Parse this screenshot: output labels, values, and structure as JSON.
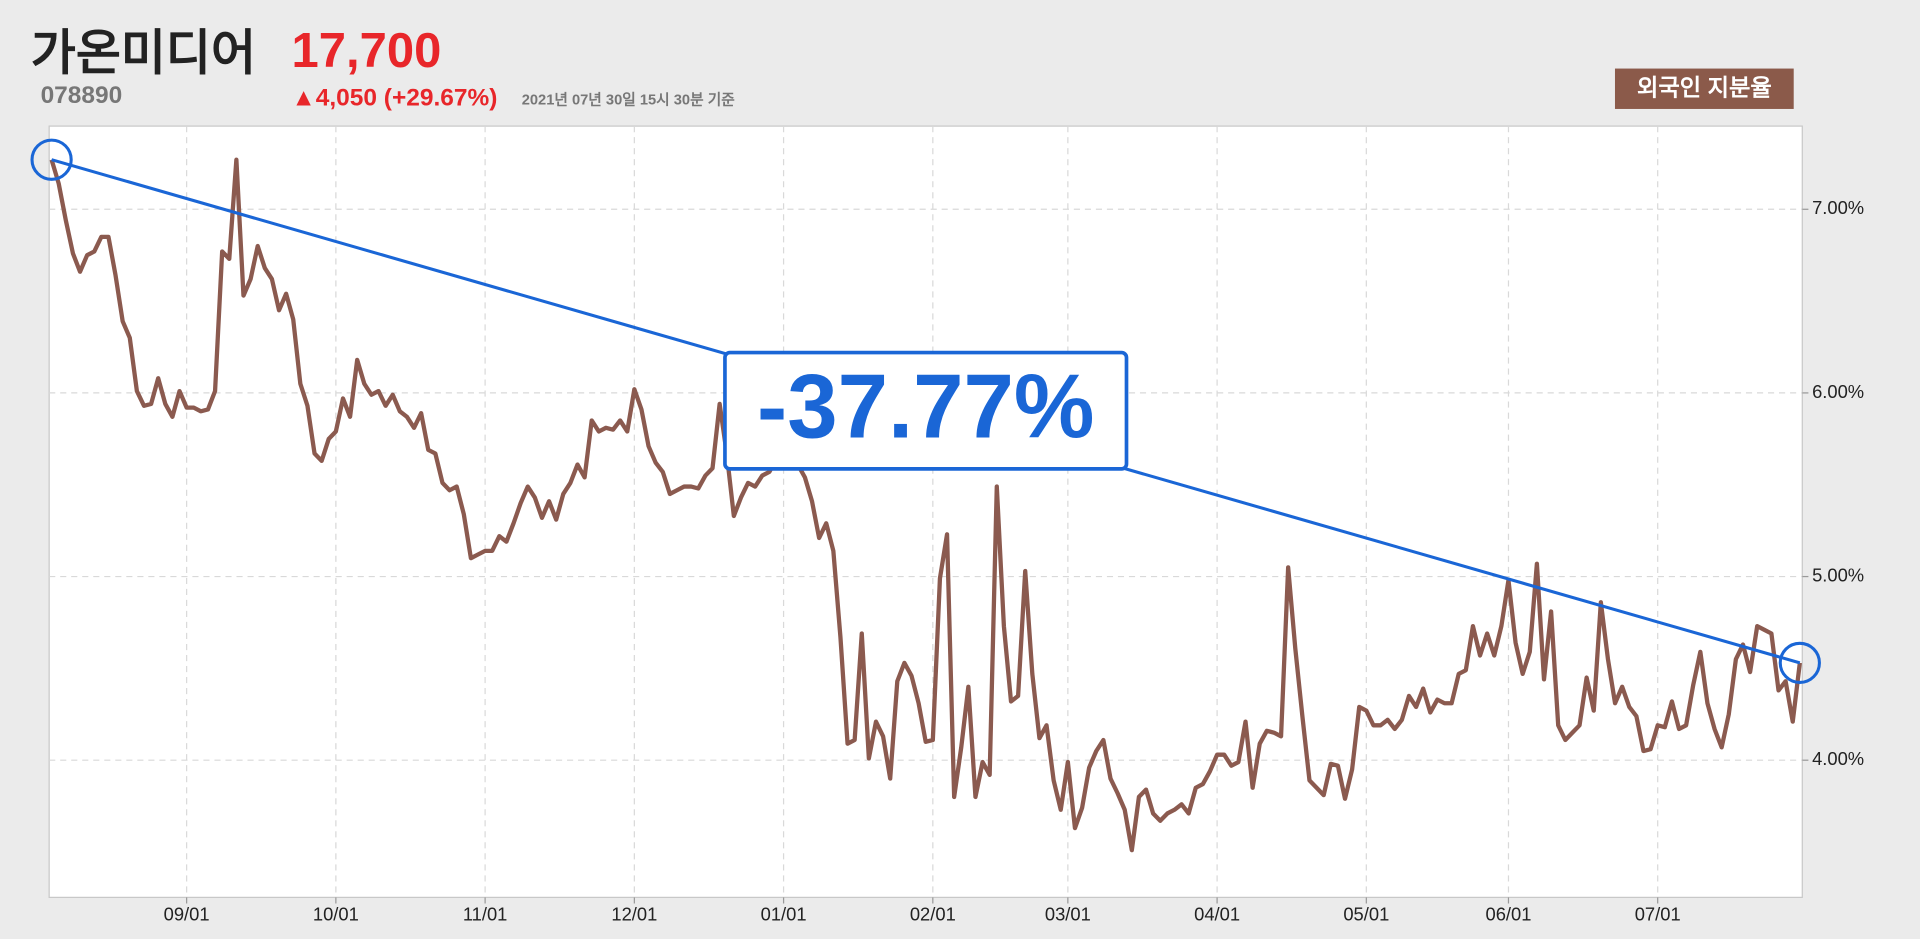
{
  "header": {
    "title": "가온미디어",
    "code": "078890",
    "price": "17,700",
    "change": "▲4,050 (+29.67%)",
    "timestamp": "2021년 07년 30일 15시 30분 기준"
  },
  "chart_data": {
    "type": "line",
    "annotation": "-37.77%",
    "categories": [
      null,
      null,
      null,
      null,
      null,
      null,
      null,
      null,
      null,
      null,
      null,
      null,
      null,
      null,
      null,
      null,
      null,
      null,
      null,
      "09/01",
      null,
      null,
      null,
      null,
      null,
      null,
      null,
      null,
      null,
      null,
      null,
      null,
      null,
      null,
      null,
      null,
      null,
      null,
      null,
      null,
      "10/01",
      null,
      null,
      null,
      null,
      null,
      null,
      null,
      null,
      null,
      null,
      null,
      null,
      null,
      null,
      null,
      null,
      null,
      null,
      null,
      null,
      "11/01",
      null,
      null,
      null,
      null,
      null,
      null,
      null,
      null,
      null,
      null,
      null,
      null,
      null,
      null,
      null,
      null,
      null,
      null,
      null,
      null,
      "12/01",
      null,
      null,
      null,
      null,
      null,
      null,
      null,
      null,
      null,
      null,
      null,
      null,
      null,
      null,
      null,
      null,
      null,
      null,
      null,
      null,
      "01/01",
      null,
      null,
      null,
      null,
      null,
      null,
      null,
      null,
      null,
      null,
      null,
      null,
      null,
      null,
      null,
      null,
      null,
      null,
      null,
      null,
      "02/01",
      null,
      null,
      null,
      null,
      null,
      null,
      null,
      null,
      null,
      null,
      null,
      null,
      null,
      null,
      null,
      null,
      null,
      null,
      "03/01",
      null,
      null,
      null,
      null,
      null,
      null,
      null,
      null,
      null,
      null,
      null,
      null,
      null,
      null,
      null,
      null,
      null,
      null,
      null,
      null,
      "04/01",
      null,
      null,
      null,
      null,
      null,
      null,
      null,
      null,
      null,
      null,
      null,
      null,
      null,
      null,
      null,
      null,
      null,
      null,
      null,
      null,
      "05/01",
      null,
      null,
      null,
      null,
      null,
      null,
      null,
      null,
      null,
      null,
      null,
      null,
      null,
      null,
      null,
      null,
      null,
      null,
      null,
      "06/01",
      null,
      null,
      null,
      null,
      null,
      null,
      null,
      null,
      null,
      null,
      null,
      null,
      null,
      null,
      null,
      null,
      null,
      null,
      null,
      null,
      "07/01",
      null,
      null,
      null,
      null,
      null,
      null,
      null,
      null,
      null,
      null,
      null,
      null,
      null,
      null,
      null,
      null,
      null,
      null,
      null,
      null
    ],
    "series": [
      {
        "name": "외국인 지분율",
        "color": "#8b5a4f",
        "values": [
          7.27,
          7.14,
          6.94,
          6.76,
          6.66,
          6.75,
          6.77,
          6.85,
          6.85,
          6.64,
          6.39,
          6.3,
          6.01,
          5.93,
          5.94,
          6.08,
          5.94,
          5.87,
          6.01,
          5.92,
          5.92,
          5.9,
          5.91,
          6.01,
          6.77,
          6.73,
          7.27,
          6.53,
          6.62,
          6.8,
          6.68,
          6.62,
          6.45,
          6.54,
          6.4,
          6.05,
          5.93,
          5.67,
          5.63,
          5.75,
          5.79,
          5.97,
          5.87,
          6.18,
          6.05,
          5.99,
          6.01,
          5.93,
          5.99,
          5.9,
          5.87,
          5.81,
          5.89,
          5.69,
          5.67,
          5.51,
          5.47,
          5.49,
          5.34,
          5.1,
          5.12,
          5.14,
          5.14,
          5.22,
          5.19,
          5.29,
          5.4,
          5.49,
          5.43,
          5.32,
          5.41,
          5.31,
          5.45,
          5.51,
          5.61,
          5.54,
          5.85,
          5.79,
          5.81,
          5.8,
          5.85,
          5.79,
          6.02,
          5.91,
          5.71,
          5.62,
          5.57,
          5.45,
          5.47,
          5.49,
          5.49,
          5.48,
          5.55,
          5.59,
          5.94,
          5.67,
          5.33,
          5.43,
          5.51,
          5.49,
          5.55,
          5.57,
          5.64,
          5.67,
          5.64,
          5.61,
          5.54,
          5.41,
          5.21,
          5.29,
          5.14,
          4.67,
          4.09,
          4.11,
          4.69,
          4.01,
          4.21,
          4.13,
          3.9,
          4.43,
          4.53,
          4.46,
          4.31,
          4.1,
          4.11,
          4.99,
          5.23,
          3.8,
          4.07,
          4.4,
          3.8,
          3.99,
          3.92,
          5.49,
          4.73,
          4.32,
          4.35,
          5.03,
          4.47,
          4.12,
          4.19,
          3.89,
          3.73,
          3.99,
          3.63,
          3.74,
          3.96,
          4.05,
          4.11,
          3.9,
          3.82,
          3.73,
          3.51,
          3.8,
          3.84,
          3.71,
          3.67,
          3.71,
          3.73,
          3.76,
          3.71,
          3.85,
          3.87,
          3.94,
          4.03,
          4.03,
          3.97,
          3.99,
          4.21,
          3.85,
          4.09,
          4.16,
          4.15,
          4.13,
          5.05,
          4.61,
          4.24,
          3.89,
          3.85,
          3.81,
          3.98,
          3.97,
          3.79,
          3.95,
          4.29,
          4.27,
          4.19,
          4.19,
          4.22,
          4.17,
          4.22,
          4.35,
          4.29,
          4.39,
          4.26,
          4.33,
          4.31,
          4.31,
          4.47,
          4.49,
          4.73,
          4.57,
          4.69,
          4.57,
          4.73,
          4.98,
          4.64,
          4.47,
          4.59,
          5.07,
          4.44,
          4.81,
          4.19,
          4.11,
          4.15,
          4.19,
          4.45,
          4.27,
          4.86,
          4.55,
          4.31,
          4.4,
          4.29,
          4.24,
          4.05,
          4.06,
          4.19,
          4.18,
          4.32,
          4.17,
          4.19,
          4.41,
          4.59,
          4.31,
          4.17,
          4.07,
          4.25,
          4.55,
          4.63,
          4.48,
          4.73,
          4.71,
          4.69,
          4.38,
          4.43,
          4.21,
          4.53
        ]
      }
    ],
    "trend_color": "#1a66d6",
    "ylim": [
      3.253,
      7.453
    ],
    "yticks": [
      {
        "value": 4,
        "label": "4.00%"
      },
      {
        "value": 5,
        "label": "5.00%"
      },
      {
        "value": 6,
        "label": "6.00%"
      },
      {
        "value": 7,
        "label": "7.00%"
      }
    ],
    "grid": true
  }
}
